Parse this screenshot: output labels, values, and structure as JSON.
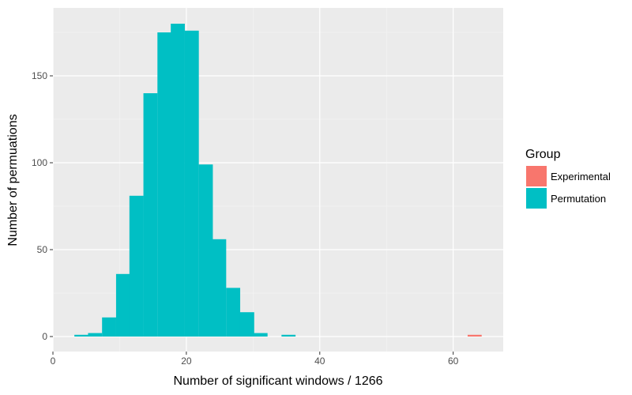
{
  "chart_data": {
    "type": "bar",
    "subtype": "histogram",
    "xlabel": "Number of significant windows / 1266",
    "ylabel": "Number of permuations",
    "xlim": [
      0,
      67.5
    ],
    "ylim": [
      0,
      180
    ],
    "xticks": [
      0,
      20,
      40,
      60
    ],
    "yticks": [
      0,
      50,
      100,
      150
    ],
    "bin_width": 2.07,
    "grid": true,
    "background": "#ebebeb",
    "legend": {
      "title": "Group",
      "position": "right",
      "entries": [
        {
          "label": "Experimental",
          "color": "#f8766d"
        },
        {
          "label": "Permutation",
          "color": "#00bfc4"
        }
      ]
    },
    "series": [
      {
        "name": "Experimental",
        "color": "#f8766d",
        "bins": [
          {
            "x": 63.2,
            "count": 1
          }
        ]
      },
      {
        "name": "Permutation",
        "color": "#00bfc4",
        "bins": [
          {
            "x": 4.25,
            "count": 1
          },
          {
            "x": 6.3,
            "count": 2
          },
          {
            "x": 8.4,
            "count": 11
          },
          {
            "x": 10.5,
            "count": 36
          },
          {
            "x": 12.5,
            "count": 81
          },
          {
            "x": 14.6,
            "count": 140
          },
          {
            "x": 16.7,
            "count": 175
          },
          {
            "x": 18.7,
            "count": 180
          },
          {
            "x": 20.8,
            "count": 176
          },
          {
            "x": 22.9,
            "count": 99
          },
          {
            "x": 24.9,
            "count": 56
          },
          {
            "x": 27.0,
            "count": 28
          },
          {
            "x": 29.1,
            "count": 14
          },
          {
            "x": 31.1,
            "count": 2
          },
          {
            "x": 35.3,
            "count": 1
          }
        ]
      }
    ]
  }
}
